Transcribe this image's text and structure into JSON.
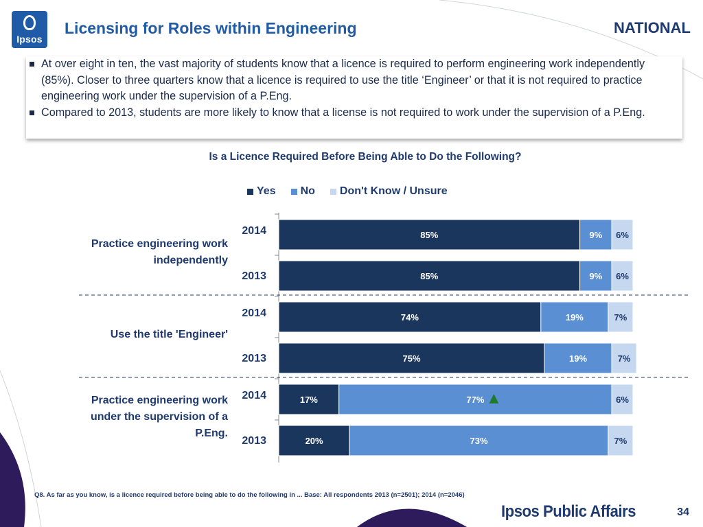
{
  "header": {
    "logo_text": "Ipsos",
    "title": "Licensing for Roles within Engineering",
    "region": "NATIONAL"
  },
  "bullets": [
    "At over eight in ten, the vast majority of students know that a licence is required to perform engineering work independently (85%).  Closer to three quarters know that a licence is required to use the title ‘Engineer’ or that it is not required to practice engineering work under the supervision of a P.Eng.",
    "Compared to 2013, students are more likely to know that a license is not required to work under the supervision of a P.Eng."
  ],
  "colors": {
    "yes": "#1b365d",
    "no": "#5b8fd4",
    "dont_know": "#c6d8ef",
    "accent_up": "#1e7a2e",
    "text": "#1f3a6e"
  },
  "chart_data": {
    "type": "bar",
    "orientation": "horizontal",
    "stacked": true,
    "title": "Is a Licence Required Before Being Able to Do the Following?",
    "legend_position": "top",
    "xlim": [
      0,
      100
    ],
    "series_names": [
      "Yes",
      "No",
      "Don't Know / Unsure"
    ],
    "groups": [
      {
        "label": "Practice engineering work independently",
        "rows": [
          {
            "year": "2014",
            "values": [
              85,
              9,
              6
            ],
            "labels": [
              "85%",
              "9%",
              "6%"
            ]
          },
          {
            "year": "2013",
            "values": [
              85,
              9,
              6
            ],
            "labels": [
              "85%",
              "9%",
              "6%"
            ]
          }
        ]
      },
      {
        "label": "Use the title 'Engineer'",
        "rows": [
          {
            "year": "2014",
            "values": [
              74,
              19,
              7
            ],
            "labels": [
              "74%",
              "19%",
              "7%"
            ]
          },
          {
            "year": "2013",
            "values": [
              75,
              19,
              7
            ],
            "labels": [
              "75%",
              "19%",
              "7%"
            ]
          }
        ]
      },
      {
        "label": "Practice engineering work under the supervision of a P.Eng.",
        "rows": [
          {
            "year": "2014",
            "values": [
              17,
              77,
              6
            ],
            "labels": [
              "17%",
              "77%",
              "6%"
            ],
            "significant_increase": [
              false,
              true,
              false
            ]
          },
          {
            "year": "2013",
            "values": [
              20,
              73,
              7
            ],
            "labels": [
              "20%",
              "73%",
              "7%"
            ]
          }
        ]
      }
    ]
  },
  "footnote": "Q8. As far as you know, is a licence required before being able to do the following in ... Base: All  respondents 2013 (n=2501); 2014 (n=2046)",
  "footer": {
    "brand": "Ipsos Public Affairs",
    "page_number": "34"
  }
}
